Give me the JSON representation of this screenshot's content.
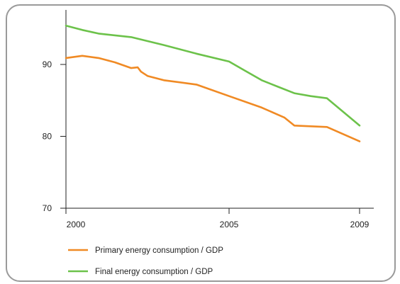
{
  "chart_data": {
    "type": "line",
    "title": "",
    "xlabel": "",
    "ylabel": "",
    "xlim": [
      2000,
      2009.4
    ],
    "ylim": [
      70,
      98.5
    ],
    "x_ticks": [
      2000,
      2005,
      2009
    ],
    "x_tick_labels": [
      "2000",
      "2005",
      "2009"
    ],
    "y_ticks": [
      70,
      80,
      90
    ],
    "y_tick_labels": [
      "70",
      "80",
      "90"
    ],
    "grid": false,
    "legend_position": "bottom-left",
    "series": [
      {
        "name": "Primary energy consumption / GDP",
        "color": "#f08a24",
        "x": [
          2000,
          2000.5,
          2001,
          2001.5,
          2002,
          2002.2,
          2002.3,
          2002.5,
          2003,
          2004,
          2005,
          2006,
          2006.7,
          2007,
          2008,
          2009
        ],
        "y": [
          90.9,
          91.2,
          90.9,
          90.3,
          89.5,
          89.6,
          89.0,
          88.4,
          87.8,
          87.2,
          85.6,
          84.0,
          82.6,
          81.5,
          81.3,
          79.3
        ]
      },
      {
        "name": "Final energy consumption / GDP",
        "color": "#6cc24a",
        "x": [
          2000,
          2000.5,
          2001,
          2002,
          2003,
          2004,
          2005,
          2005.5,
          2006,
          2006.5,
          2007,
          2007.5,
          2008,
          2009
        ],
        "y": [
          95.4,
          94.8,
          94.3,
          93.8,
          92.7,
          91.5,
          90.4,
          89.1,
          87.8,
          86.9,
          86.0,
          85.6,
          85.3,
          81.5
        ]
      }
    ]
  }
}
